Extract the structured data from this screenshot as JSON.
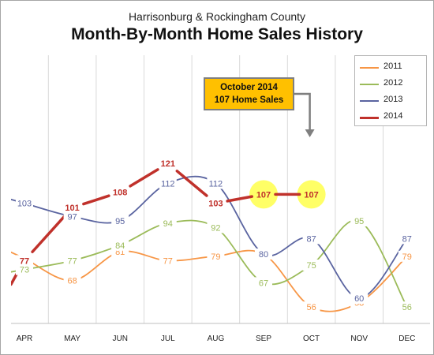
{
  "header": {
    "subtitle": "Harrisonburg & Rockingham County",
    "title": "Month-By-Month Home Sales History"
  },
  "callout": {
    "line1": "October 2014",
    "line2": "107 Home Sales",
    "fill_color": "#ffc000"
  },
  "chart_data": {
    "type": "line",
    "subtitle": "Harrisonburg & Rockingham County",
    "title": "Month-By-Month Home Sales History",
    "categories": [
      "APR",
      "MAY",
      "JUN",
      "JUL",
      "AUG",
      "SEP",
      "OCT",
      "NOV",
      "DEC"
    ],
    "xlabel": "",
    "ylabel": "",
    "grid": "vertical",
    "legend_position": "top-right",
    "highlighted_points": [
      {
        "series": "2014",
        "category": "SEP",
        "value": 107,
        "color": "#ffff66"
      },
      {
        "series": "2014",
        "category": "OCT",
        "value": 107,
        "color": "#ffff66"
      }
    ],
    "series": [
      {
        "name": "2011",
        "color": "#f79646",
        "values": [
          78,
          68,
          81,
          77,
          79,
          80,
          56,
          58,
          79
        ],
        "labels": [
          "",
          "68",
          "81",
          "77",
          "79",
          "",
          "56",
          "58",
          "79"
        ]
      },
      {
        "name": "2012",
        "color": "#9bbb59",
        "values": [
          73,
          77,
          84,
          94,
          92,
          67,
          75,
          95,
          56
        ],
        "labels": [
          "73",
          "77",
          "84",
          "94",
          "92",
          "67",
          "75",
          "95",
          "56"
        ]
      },
      {
        "name": "2013",
        "color": "#5a64a0",
        "values": [
          103,
          97,
          95,
          112,
          112,
          80,
          87,
          60,
          87
        ],
        "labels": [
          "103",
          "97",
          "95",
          "112",
          "112",
          "80",
          "87",
          "60",
          "87"
        ]
      },
      {
        "name": "2014",
        "color": "#c0312b",
        "values": [
          77,
          101,
          108,
          121,
          103,
          107,
          107,
          null,
          null
        ],
        "labels": [
          "77",
          "101",
          "108",
          "121",
          "103",
          "107",
          "107",
          "",
          ""
        ]
      }
    ]
  }
}
